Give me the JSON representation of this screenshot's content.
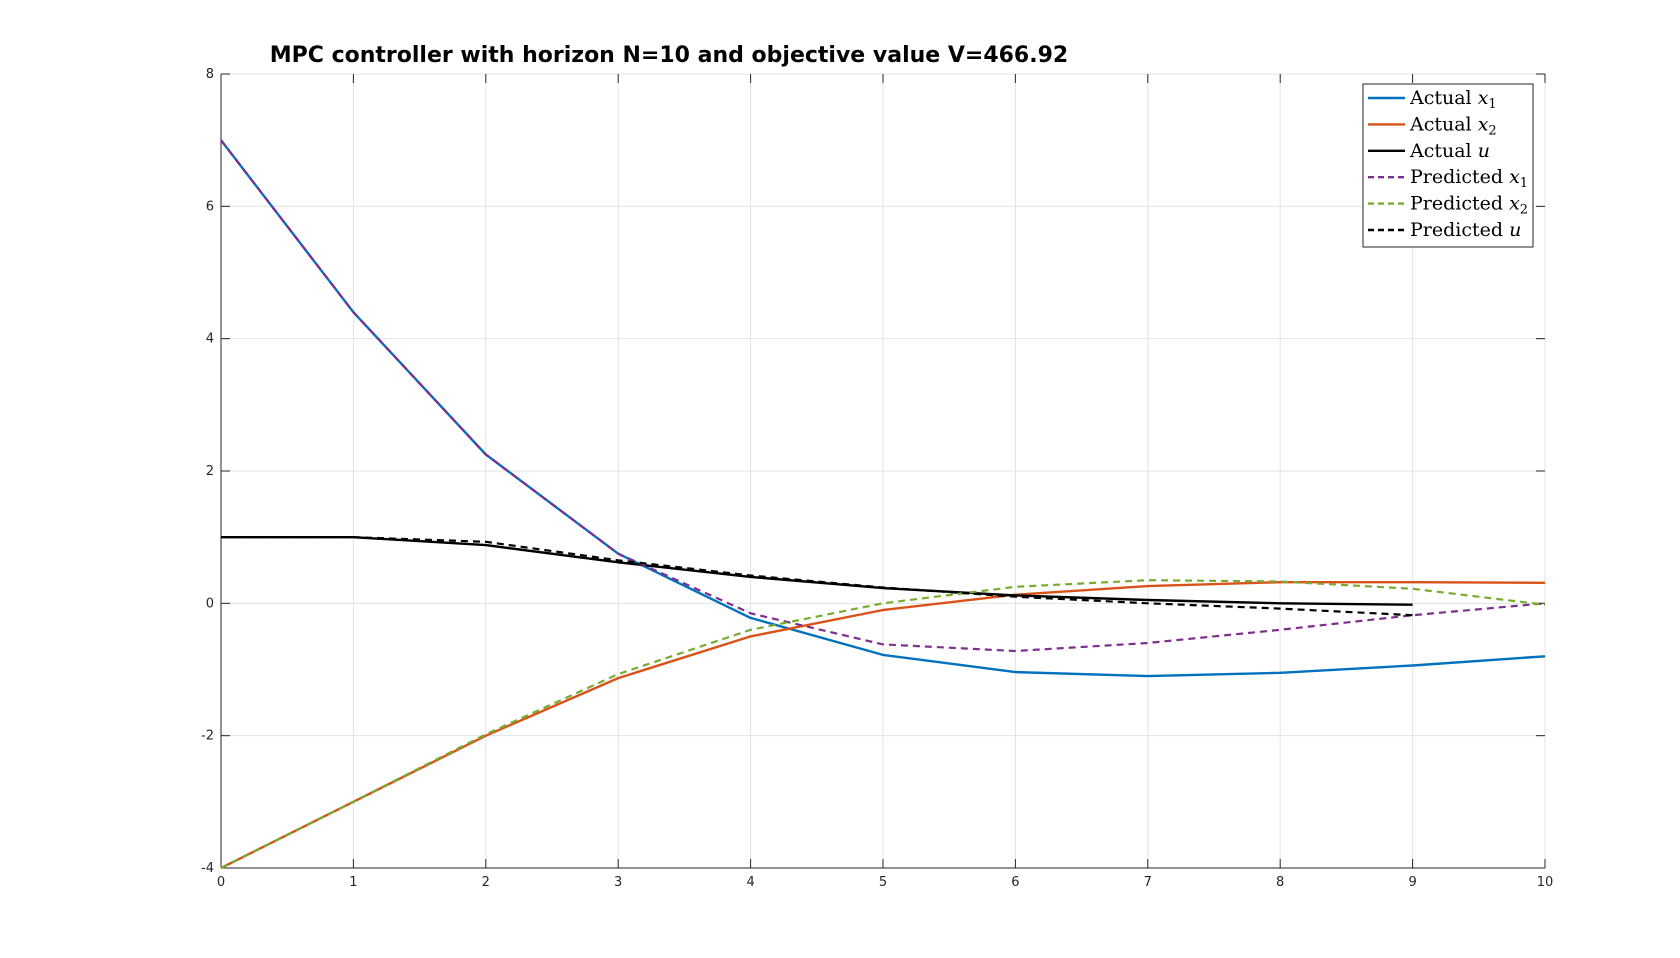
{
  "chart_data": {
    "type": "line",
    "title": "MPC controller with horizon N=10 and objective value V=466.92",
    "xlabel": "",
    "ylabel": "",
    "xlim": [
      0,
      10
    ],
    "ylim": [
      -4,
      8
    ],
    "xticks": [
      "0",
      "1",
      "2",
      "3",
      "4",
      "5",
      "6",
      "7",
      "8",
      "9",
      "10"
    ],
    "yticks": [
      "8",
      "6",
      "4",
      "2",
      "0",
      "-2",
      "-4"
    ],
    "xtick_values": [
      0,
      1,
      2,
      3,
      4,
      5,
      6,
      7,
      8,
      9,
      10
    ],
    "ytick_values": [
      8,
      6,
      4,
      2,
      0,
      -2,
      -4
    ],
    "grid": true,
    "legend_position": "top-right",
    "series": [
      {
        "name": "Actual x1",
        "label_main": "Actual ",
        "label_var": "x",
        "label_sub": "1",
        "color": "#0072BD",
        "style": "solid",
        "x": [
          0,
          1,
          2,
          3,
          4,
          5,
          6,
          7,
          8,
          9,
          10
        ],
        "y": [
          7.0,
          4.4,
          2.25,
          0.75,
          -0.22,
          -0.78,
          -1.04,
          -1.1,
          -1.05,
          -0.94,
          -0.8
        ]
      },
      {
        "name": "Actual x2",
        "label_main": "Actual ",
        "label_var": "x",
        "label_sub": "2",
        "color": "#D95319",
        "style": "solid",
        "x": [
          0,
          1,
          2,
          3,
          4,
          5,
          6,
          7,
          8,
          9,
          10
        ],
        "y": [
          -4.0,
          -3.0,
          -2.0,
          -1.13,
          -0.5,
          -0.1,
          0.13,
          0.26,
          0.32,
          0.32,
          0.31
        ]
      },
      {
        "name": "Actual u",
        "label_main": "Actual ",
        "label_var": "u",
        "label_sub": "",
        "color": "#000000",
        "style": "solid",
        "x": [
          0,
          1,
          2,
          3,
          4,
          5,
          6,
          7,
          8,
          9
        ],
        "y": [
          1.0,
          1.0,
          0.88,
          0.62,
          0.4,
          0.23,
          0.12,
          0.05,
          0.0,
          -0.02
        ]
      },
      {
        "name": "Predicted x1",
        "label_main": "Predicted ",
        "label_var": "x",
        "label_sub": "1",
        "color": "#7E2F8E",
        "style": "dashed",
        "x": [
          0,
          1,
          2,
          3,
          4,
          5,
          6,
          7,
          8,
          9,
          10
        ],
        "y": [
          7.0,
          4.4,
          2.25,
          0.75,
          -0.15,
          -0.62,
          -0.72,
          -0.6,
          -0.4,
          -0.18,
          0.0
        ]
      },
      {
        "name": "Predicted x2",
        "label_main": "Predicted ",
        "label_var": "x",
        "label_sub": "2",
        "color": "#77AC30",
        "style": "dashed",
        "x": [
          0,
          1,
          2,
          3,
          4,
          5,
          6,
          7,
          8,
          9,
          10
        ],
        "y": [
          -4.0,
          -3.0,
          -1.98,
          -1.07,
          -0.4,
          0.0,
          0.25,
          0.35,
          0.33,
          0.22,
          -0.02
        ]
      },
      {
        "name": "Predicted u",
        "label_main": "Predicted ",
        "label_var": "u",
        "label_sub": "",
        "color": "#000000",
        "style": "dashed",
        "x": [
          0,
          1,
          2,
          3,
          4,
          5,
          6,
          7,
          8,
          9
        ],
        "y": [
          1.0,
          1.0,
          0.93,
          0.65,
          0.42,
          0.24,
          0.1,
          0.0,
          -0.08,
          -0.18
        ]
      }
    ]
  }
}
